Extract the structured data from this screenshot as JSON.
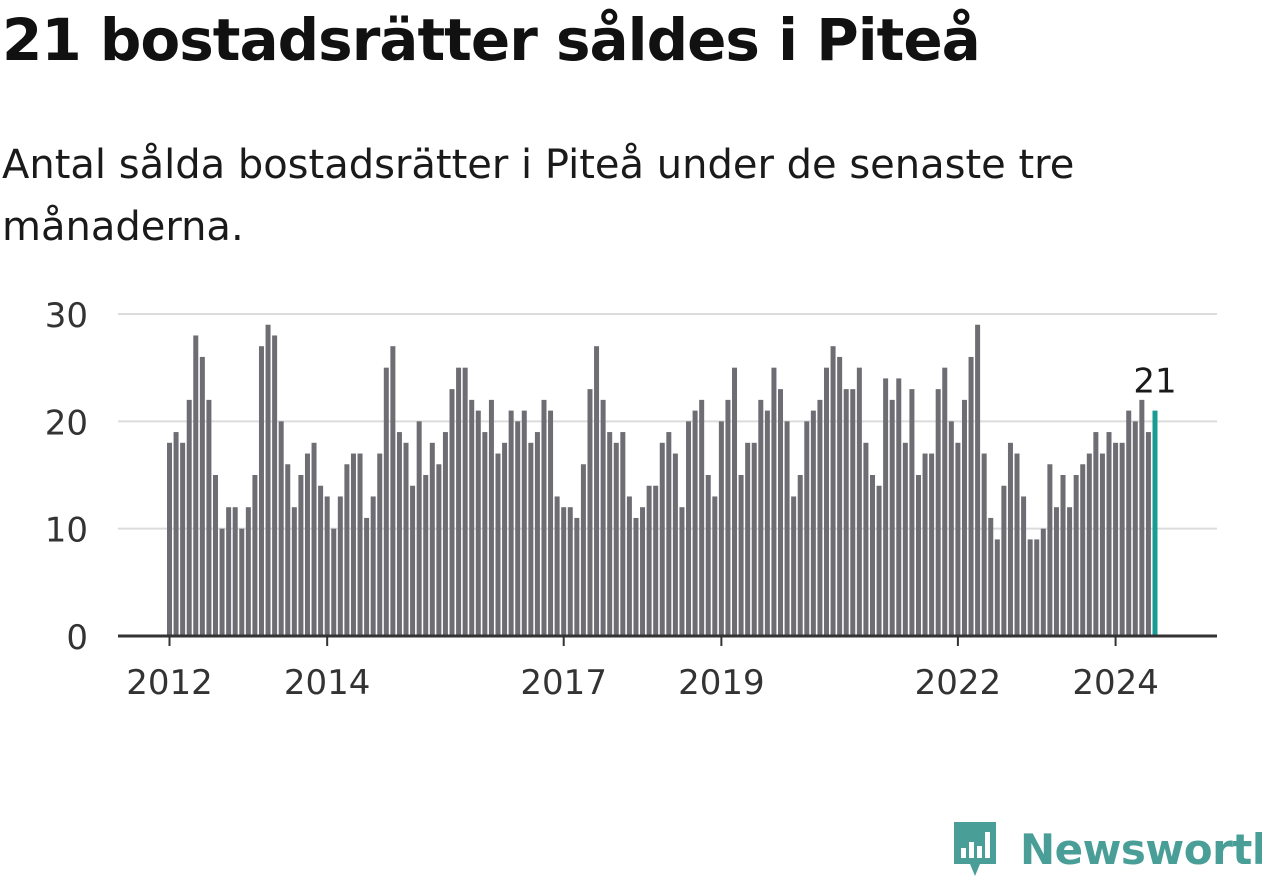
{
  "title": "21 bostadsrätter såldes i Piteå",
  "subtitle": "Antal sålda bostadsrätter i Piteå under de senaste tre månaderna.",
  "brand": {
    "name": "Newsworthy"
  },
  "colors": {
    "bar": "#6e6d73",
    "highlight": "#1a9c94",
    "grid": "#dcdcdc",
    "axis": "#333333",
    "brand": "#4a9e98"
  },
  "chart_data": {
    "type": "bar",
    "title": "21 bostadsrätter såldes i Piteå",
    "xlabel": "",
    "ylabel": "",
    "ylim": [
      0,
      30
    ],
    "yticks": [
      0,
      10,
      20,
      30
    ],
    "start": "2012-01",
    "xtick_labels": [
      {
        "label": "2012",
        "index": 0
      },
      {
        "label": "2014",
        "index": 24
      },
      {
        "label": "2017",
        "index": 60
      },
      {
        "label": "2019",
        "index": 84
      },
      {
        "label": "2022",
        "index": 120
      },
      {
        "label": "2024",
        "index": 144
      }
    ],
    "values": [
      18,
      19,
      18,
      22,
      28,
      26,
      22,
      15,
      10,
      12,
      12,
      10,
      12,
      15,
      27,
      29,
      28,
      20,
      16,
      12,
      15,
      17,
      18,
      14,
      13,
      10,
      13,
      16,
      17,
      17,
      11,
      13,
      17,
      25,
      27,
      19,
      18,
      14,
      20,
      15,
      18,
      16,
      19,
      23,
      25,
      25,
      22,
      21,
      19,
      22,
      17,
      18,
      21,
      20,
      21,
      18,
      19,
      22,
      21,
      13,
      12,
      12,
      11,
      16,
      23,
      27,
      22,
      19,
      18,
      19,
      13,
      11,
      12,
      14,
      14,
      18,
      19,
      17,
      12,
      20,
      21,
      22,
      15,
      13,
      20,
      22,
      25,
      15,
      18,
      18,
      22,
      21,
      25,
      23,
      20,
      13,
      15,
      20,
      21,
      22,
      25,
      27,
      26,
      23,
      23,
      25,
      18,
      15,
      14,
      24,
      22,
      24,
      18,
      23,
      15,
      17,
      17,
      23,
      25,
      20,
      18,
      22,
      26,
      29,
      17,
      11,
      9,
      14,
      18,
      17,
      13,
      9,
      9,
      10,
      16,
      12,
      15,
      12,
      15,
      16,
      17,
      19,
      17,
      19,
      18,
      18,
      21,
      20,
      22,
      19,
      21
    ],
    "annotation": {
      "index": 150,
      "label": "21"
    }
  }
}
